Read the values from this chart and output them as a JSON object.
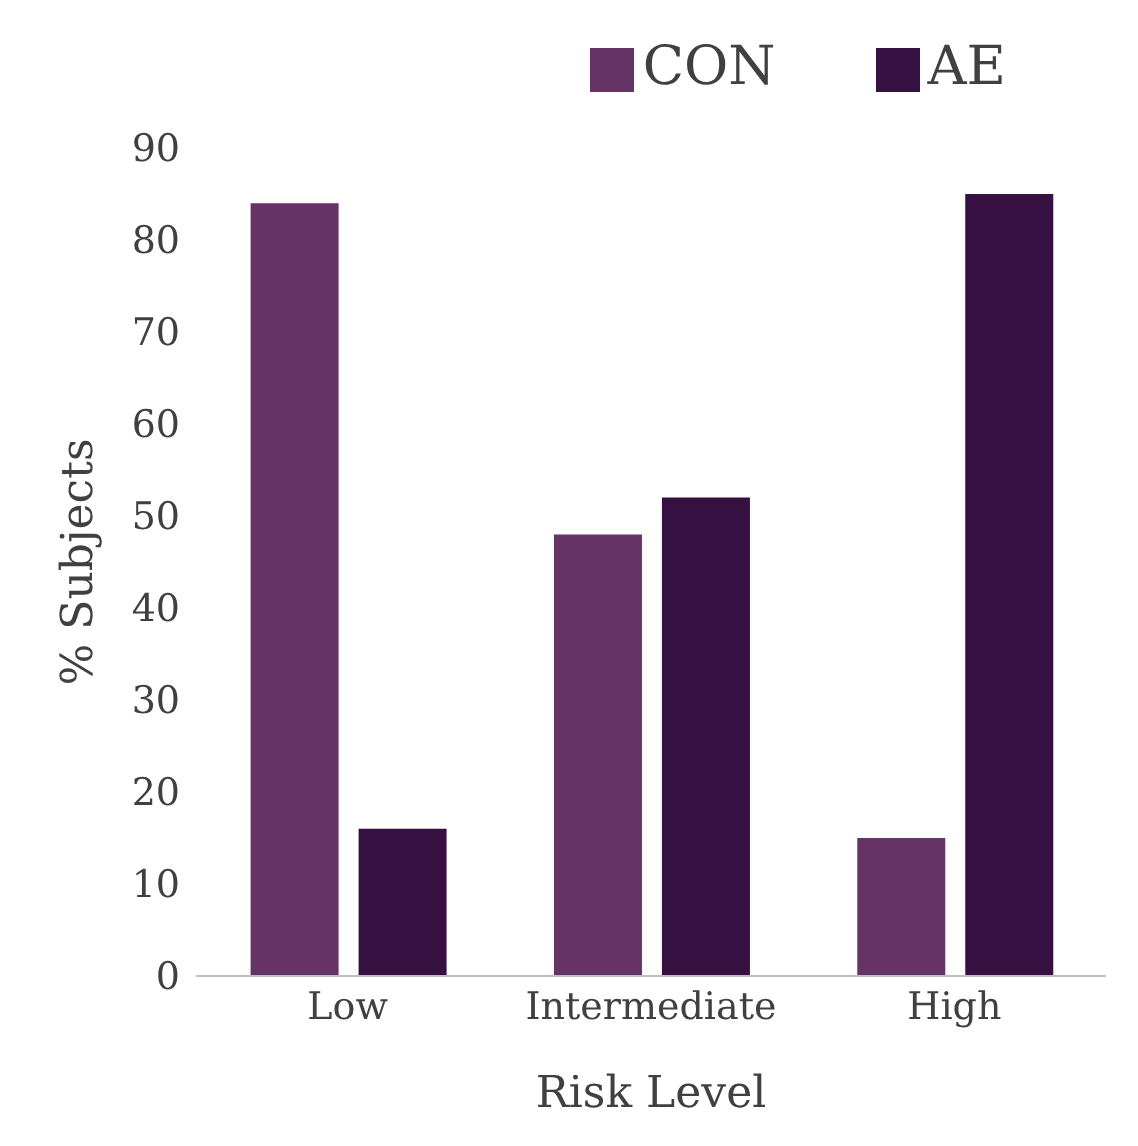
{
  "chart_data": {
    "type": "bar",
    "xlabel": "Risk Level",
    "ylabel": "% Subjects",
    "categories": [
      "Low",
      "Intermediate",
      "High"
    ],
    "series": [
      {
        "name": "CON",
        "color": "#663366",
        "values": [
          84,
          48,
          15
        ]
      },
      {
        "name": "AE",
        "color": "#361040",
        "values": [
          16,
          52,
          85
        ]
      }
    ],
    "ylim": [
      0,
      90
    ],
    "yticks": [
      0,
      10,
      20,
      30,
      40,
      50,
      60,
      70,
      80,
      90
    ],
    "grid": false,
    "legend": "top right"
  }
}
